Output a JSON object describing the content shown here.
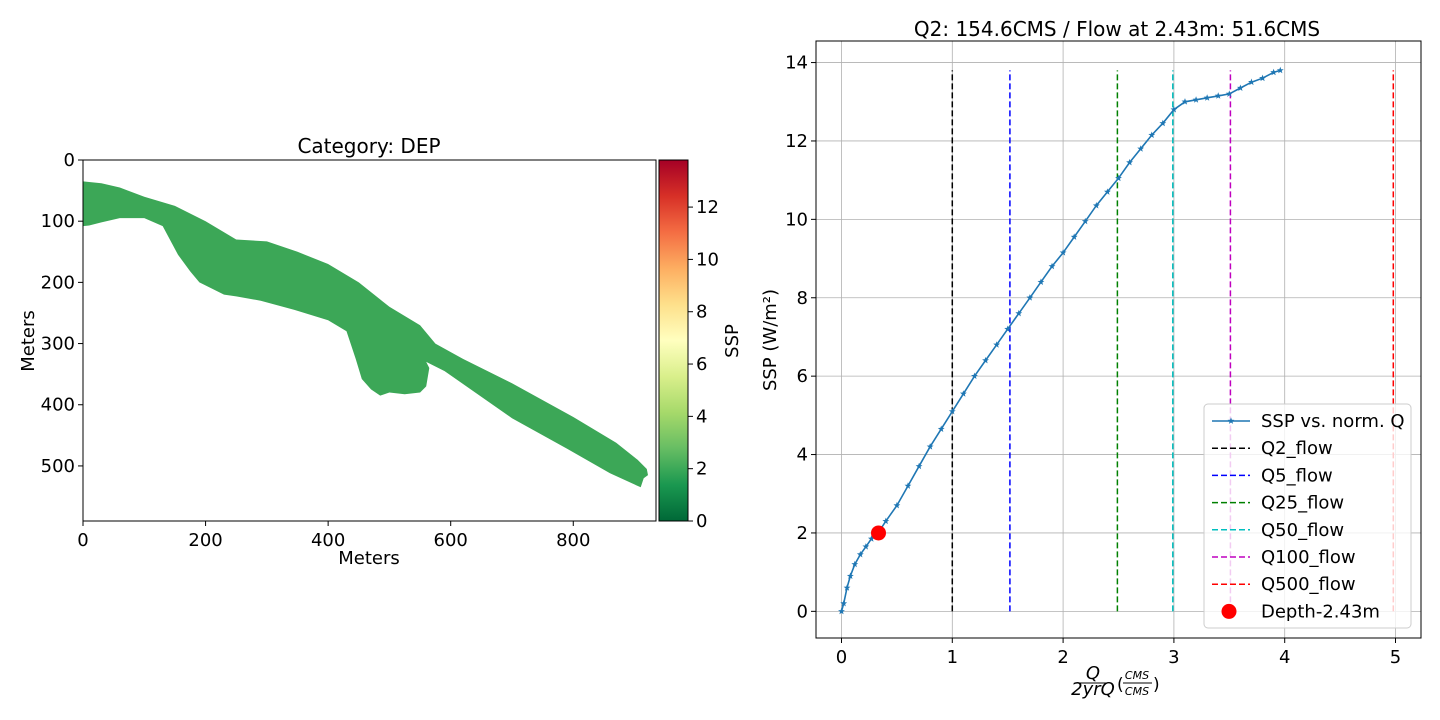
{
  "chart_data": [
    {
      "type": "heatmap",
      "title": "Category: DEP",
      "xlabel": "Meters",
      "ylabel": "Meters",
      "xlim": [
        0,
        935
      ],
      "ylim": [
        590,
        0
      ],
      "x_ticks": [
        "0",
        "200",
        "400",
        "600",
        "800"
      ],
      "y_ticks": [
        "0",
        "100",
        "200",
        "300",
        "400",
        "500"
      ],
      "x_tick_values": [
        0,
        200,
        400,
        600,
        800
      ],
      "y_tick_values": [
        0,
        100,
        200,
        300,
        400,
        500
      ],
      "fill_color": "#3ca757",
      "fill_value": 1.8,
      "reach_outline": [
        [
          0,
          35
        ],
        [
          30,
          38
        ],
        [
          60,
          45
        ],
        [
          100,
          60
        ],
        [
          150,
          75
        ],
        [
          200,
          100
        ],
        [
          250,
          130
        ],
        [
          300,
          133
        ],
        [
          350,
          150
        ],
        [
          400,
          170
        ],
        [
          450,
          200
        ],
        [
          500,
          240
        ],
        [
          550,
          270
        ],
        [
          575,
          300
        ],
        [
          620,
          325
        ],
        [
          700,
          365
        ],
        [
          800,
          420
        ],
        [
          870,
          462
        ],
        [
          905,
          490
        ],
        [
          920,
          505
        ],
        [
          922,
          515
        ],
        [
          915,
          520
        ],
        [
          910,
          535
        ],
        [
          860,
          512
        ],
        [
          790,
          472
        ],
        [
          700,
          422
        ],
        [
          640,
          380
        ],
        [
          590,
          345
        ],
        [
          560,
          330
        ],
        [
          565,
          340
        ],
        [
          560,
          370
        ],
        [
          550,
          380
        ],
        [
          525,
          383
        ],
        [
          500,
          380
        ],
        [
          485,
          385
        ],
        [
          470,
          375
        ],
        [
          455,
          358
        ],
        [
          445,
          325
        ],
        [
          430,
          280
        ],
        [
          400,
          262
        ],
        [
          345,
          245
        ],
        [
          290,
          230
        ],
        [
          250,
          223
        ],
        [
          230,
          220
        ],
        [
          190,
          200
        ],
        [
          175,
          182
        ],
        [
          155,
          155
        ],
        [
          130,
          108
        ],
        [
          100,
          95
        ],
        [
          60,
          95
        ],
        [
          30,
          102
        ],
        [
          10,
          107
        ],
        [
          0,
          108
        ]
      ],
      "colorbar": {
        "label": "SSP",
        "vmin": 0,
        "vmax": 13.8,
        "ticks": [
          "0",
          "2",
          "4",
          "6",
          "8",
          "10",
          "12"
        ],
        "tick_values": [
          0,
          2,
          4,
          6,
          8,
          10,
          12
        ],
        "colormap": "RdYlGn_r"
      }
    },
    {
      "type": "line",
      "title": "Q2: 154.6CMS / Flow at 2.43m: 51.6CMS",
      "xlabel_fraction_num": "Q",
      "xlabel_fraction_den": "2yrQ",
      "xlabel_units_num": "CMS",
      "xlabel_units_den": "CMS",
      "ylabel": "SSP (W/m²)",
      "xlim": [
        -0.23,
        5.23
      ],
      "ylim": [
        -0.68,
        14.55
      ],
      "x_ticks": [
        "0",
        "1",
        "2",
        "3",
        "4",
        "5"
      ],
      "y_ticks": [
        "0",
        "2",
        "4",
        "6",
        "8",
        "10",
        "12",
        "14"
      ],
      "x_tick_values": [
        0,
        1,
        2,
        3,
        4,
        5
      ],
      "y_tick_values": [
        0,
        2,
        4,
        6,
        8,
        10,
        12,
        14
      ],
      "grid": true,
      "legend_position": "lower-right",
      "series": [
        {
          "name": "SSP vs. norm. Q",
          "color": "#1f77b4",
          "marker": "star",
          "x": [
            0.0,
            0.02,
            0.05,
            0.08,
            0.12,
            0.17,
            0.22,
            0.27,
            0.33,
            0.4,
            0.5,
            0.6,
            0.7,
            0.8,
            0.9,
            1.0,
            1.1,
            1.2,
            1.3,
            1.4,
            1.5,
            1.6,
            1.7,
            1.8,
            1.9,
            2.0,
            2.1,
            2.2,
            2.3,
            2.4,
            2.5,
            2.6,
            2.7,
            2.8,
            2.9,
            3.0,
            3.1,
            3.2,
            3.3,
            3.4,
            3.5,
            3.6,
            3.7,
            3.8,
            3.9,
            3.96
          ],
          "y": [
            0.0,
            0.2,
            0.6,
            0.9,
            1.2,
            1.45,
            1.65,
            1.85,
            2.0,
            2.3,
            2.7,
            3.2,
            3.7,
            4.2,
            4.65,
            5.1,
            5.55,
            6.0,
            6.4,
            6.8,
            7.2,
            7.6,
            8.0,
            8.4,
            8.8,
            9.15,
            9.55,
            9.95,
            10.35,
            10.7,
            11.05,
            11.45,
            11.8,
            12.15,
            12.45,
            12.8,
            13.0,
            13.05,
            13.1,
            13.15,
            13.2,
            13.35,
            13.5,
            13.6,
            13.75,
            13.8
          ]
        }
      ],
      "vlines": [
        {
          "name": "Q2_flow",
          "x": 1.0,
          "color": "#000000",
          "y_top": 13.8
        },
        {
          "name": "Q5_flow",
          "x": 1.52,
          "color": "#0000ff",
          "y_top": 13.8
        },
        {
          "name": "Q25_flow",
          "x": 2.49,
          "color": "#008000",
          "y_top": 13.8
        },
        {
          "name": "Q50_flow",
          "x": 2.99,
          "color": "#00bfbf",
          "y_top": 13.8
        },
        {
          "name": "Q100_flow",
          "x": 3.51,
          "color": "#bf00bf",
          "y_top": 13.8
        },
        {
          "name": "Q500_flow",
          "x": 4.98,
          "color": "#ff0000",
          "y_top": 13.8
        }
      ],
      "point": {
        "name": "Depth-2.43m",
        "x": 0.334,
        "y": 2.0,
        "color": "#ff0000"
      }
    }
  ]
}
